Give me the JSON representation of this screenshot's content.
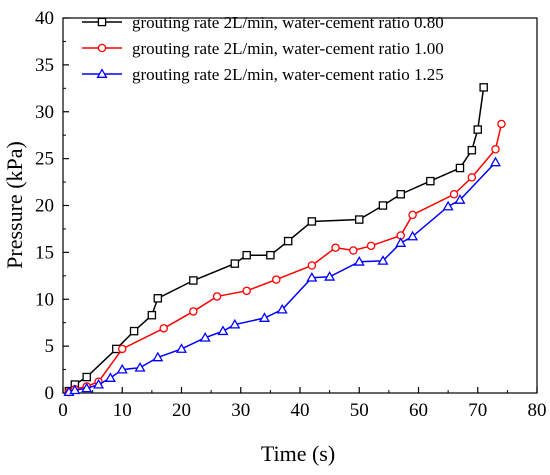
{
  "chart_data": {
    "type": "line",
    "title": "",
    "xlabel": "Time (s)",
    "ylabel": "Pressure (kPa)",
    "xlim": [
      0,
      80
    ],
    "ylim": [
      0,
      40
    ],
    "xticks": [
      0,
      10,
      20,
      30,
      40,
      50,
      60,
      70,
      80
    ],
    "yticks": [
      0,
      5,
      10,
      15,
      20,
      25,
      30,
      35,
      40
    ],
    "grid": false,
    "legend_position": "top-left",
    "series": [
      {
        "name": "grouting rate 2L/min, water-cement ratio 0.80",
        "color": "#000000",
        "marker": "square",
        "x": [
          1,
          2,
          4,
          9,
          12,
          15,
          16,
          22,
          29,
          31,
          35,
          38,
          42,
          50,
          54,
          57,
          62,
          67,
          69,
          70,
          71
        ],
        "y": [
          0.2,
          0.9,
          1.7,
          4.7,
          6.6,
          8.3,
          10.1,
          12.0,
          13.8,
          14.7,
          14.7,
          16.2,
          18.3,
          18.5,
          20.0,
          21.2,
          22.6,
          24.0,
          25.9,
          28.1,
          32.6
        ]
      },
      {
        "name": "grouting rate 2L/min, water-cement ratio 1.00",
        "color": "#ff0000",
        "marker": "circle",
        "x": [
          1,
          2,
          4,
          6,
          10,
          17,
          22,
          26,
          31,
          36,
          42,
          46,
          49,
          52,
          57,
          59,
          66,
          69,
          73,
          74
        ],
        "y": [
          0.1,
          0.4,
          0.7,
          1.2,
          4.7,
          6.9,
          8.7,
          10.3,
          10.9,
          12.1,
          13.6,
          15.5,
          15.2,
          15.7,
          16.8,
          19.0,
          21.2,
          23.0,
          26.0,
          28.7
        ]
      },
      {
        "name": "grouting rate 2L/min, water-cement ratio 1.25",
        "color": "#0000ff",
        "marker": "triangle",
        "x": [
          1,
          2,
          4,
          6,
          8,
          10,
          13,
          16,
          20,
          24,
          27,
          29,
          34,
          37,
          42,
          45,
          50,
          54,
          57,
          59,
          65,
          67,
          73
        ],
        "y": [
          0.1,
          0.3,
          0.5,
          0.9,
          1.6,
          2.5,
          2.7,
          3.8,
          4.7,
          5.9,
          6.6,
          7.3,
          8.0,
          8.9,
          12.3,
          12.4,
          14.0,
          14.1,
          16.0,
          16.7,
          19.9,
          20.6,
          24.6
        ]
      }
    ]
  }
}
